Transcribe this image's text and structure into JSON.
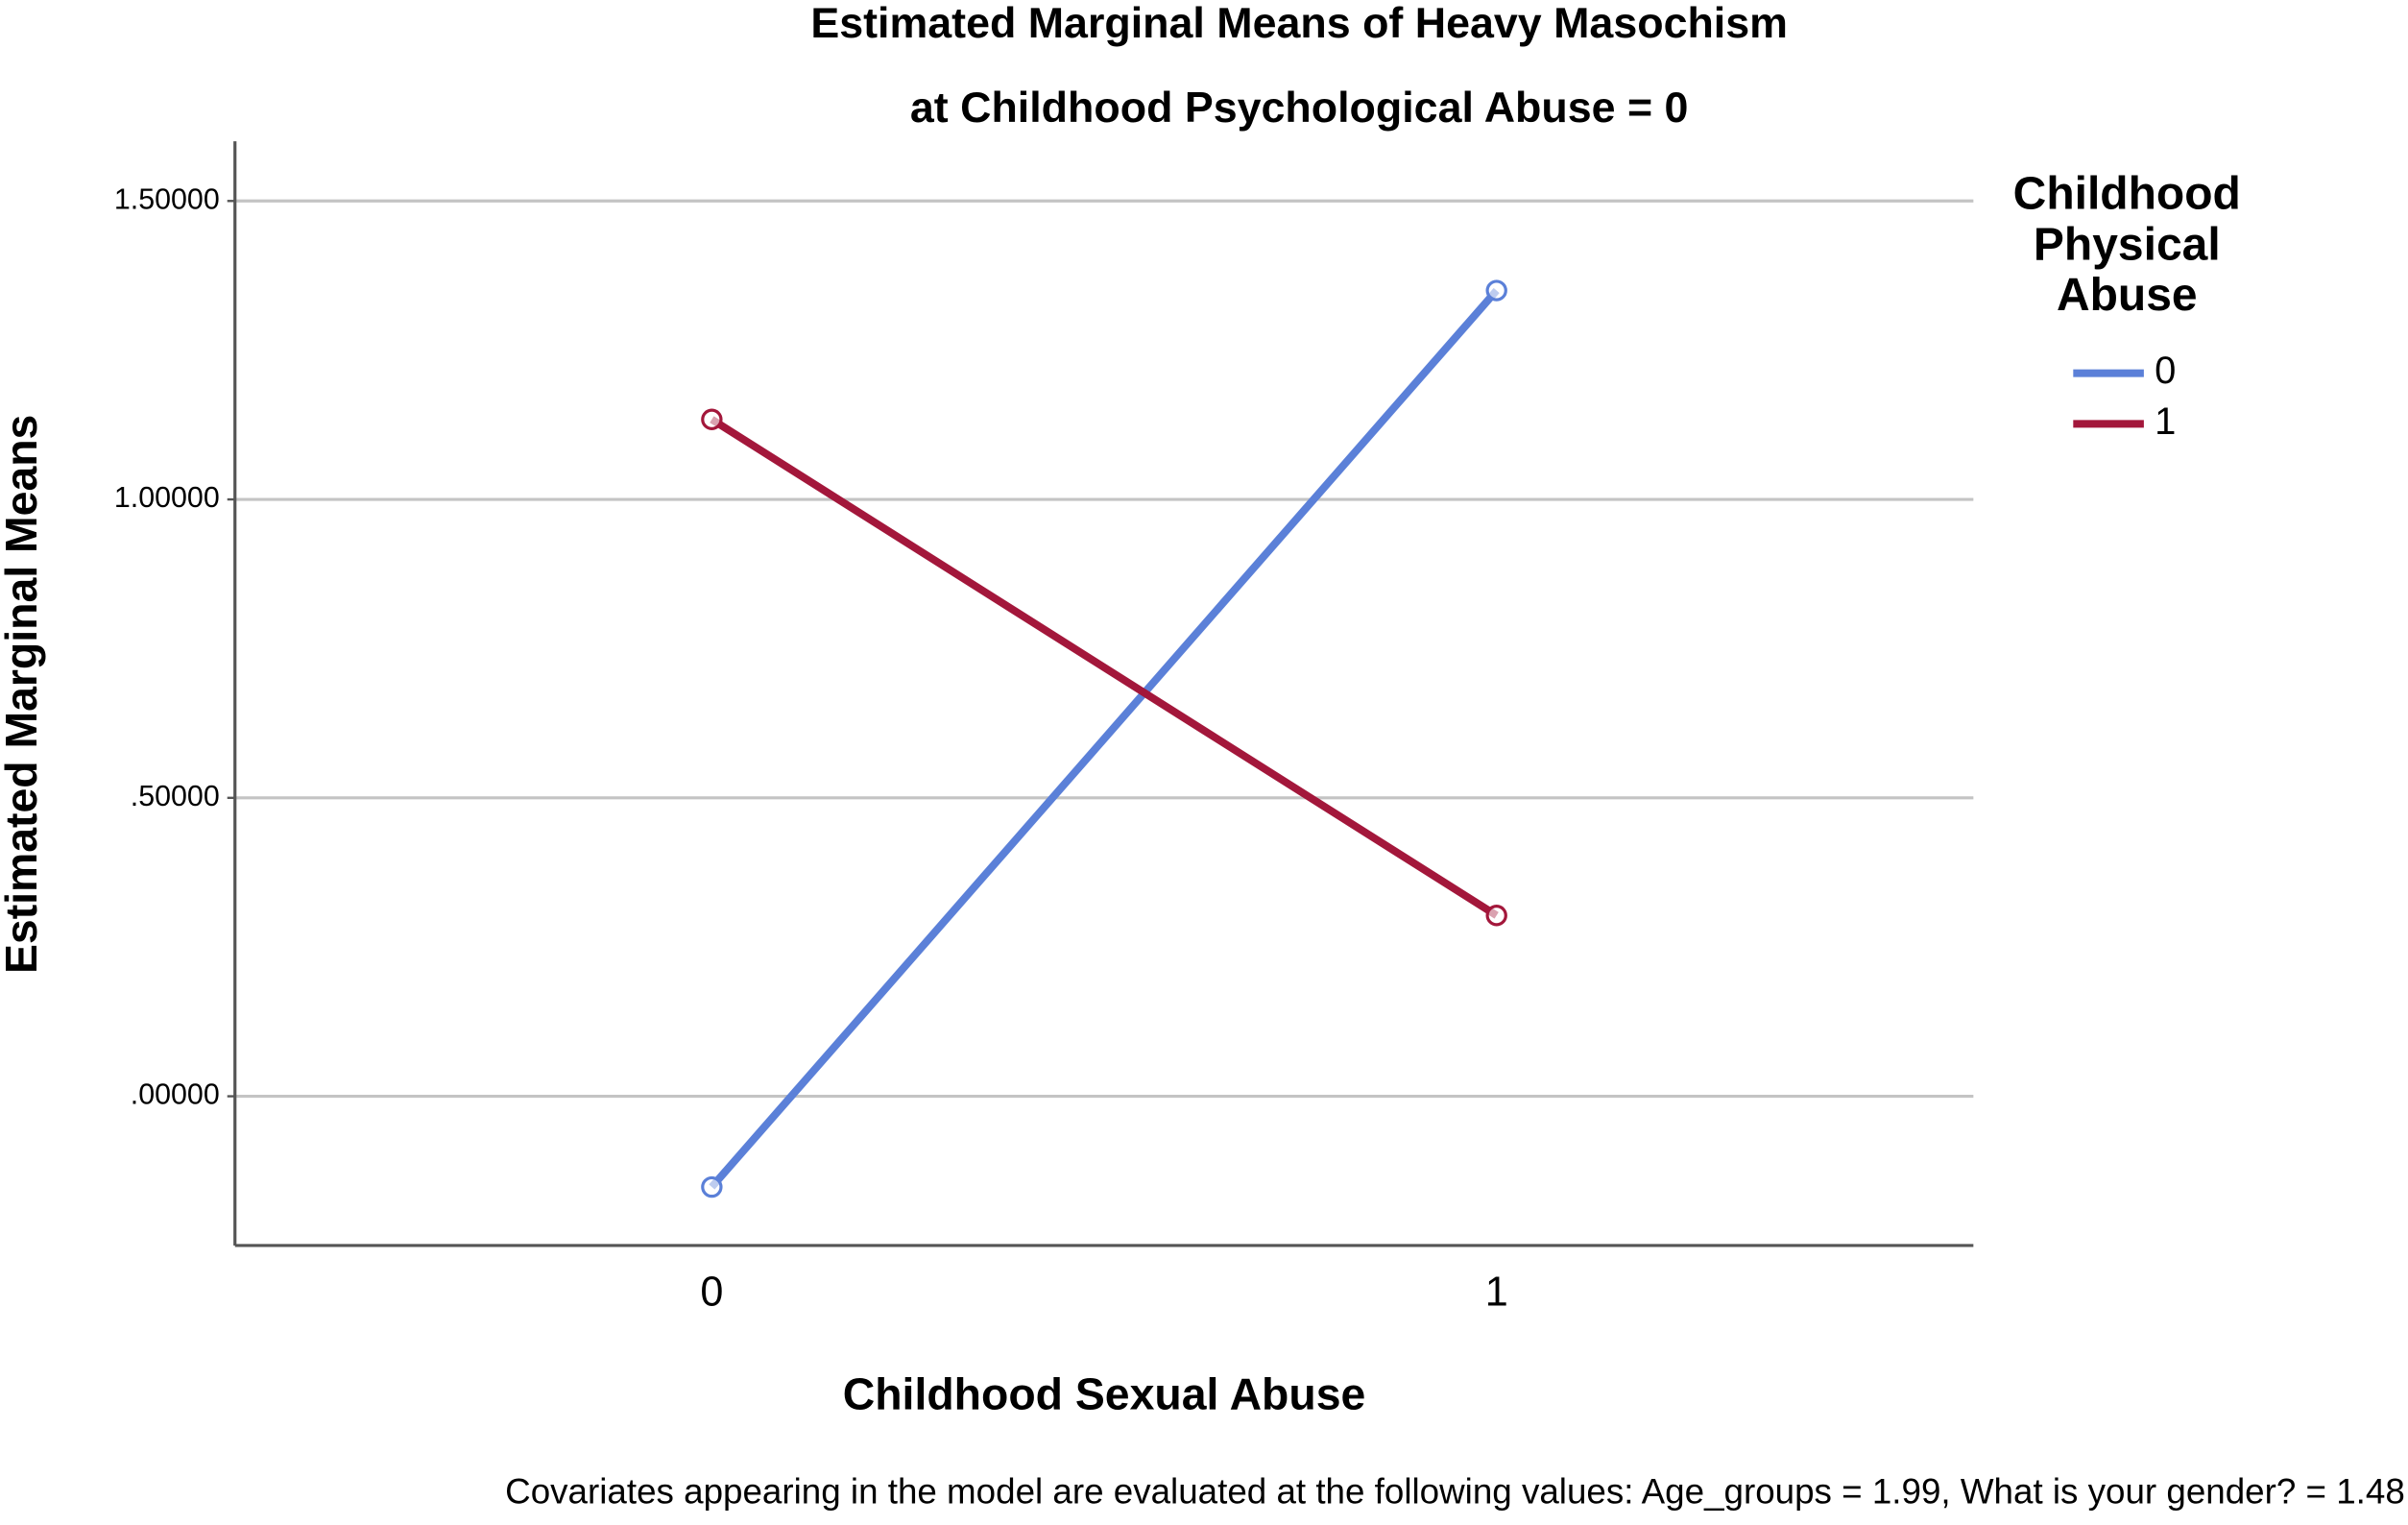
{
  "chart_data": {
    "type": "line",
    "title": "Estimated Marginal Means of Heavy Masochism",
    "subtitle": "at Childhood Psychological Abuse = 0",
    "x_label": "Childhood Sexual Abuse",
    "y_label": "Estimated Marginal Means",
    "legend_title": "Childhood Physical Abuse",
    "legend_position": "right",
    "footnote": "Covariates appearing in the model are evaluated at the following values: Age_groups = 1.99, What is your gender? = 1.48",
    "categories": [
      "0",
      "1"
    ],
    "series": [
      {
        "name": "0",
        "color": "#5b80d8",
        "values": [
          -0.152,
          1.35
        ]
      },
      {
        "name": "1",
        "color": "#a3173b",
        "values": [
          1.134,
          0.303
        ]
      }
    ],
    "ylim": [
      -0.25,
      1.6
    ],
    "yticks": [
      {
        "value": 0,
        "label": ".00000"
      },
      {
        "value": 0.5,
        "label": ".50000"
      },
      {
        "value": 1,
        "label": "1.00000"
      },
      {
        "value": 1.5,
        "label": "1.50000"
      }
    ],
    "grid": true
  }
}
